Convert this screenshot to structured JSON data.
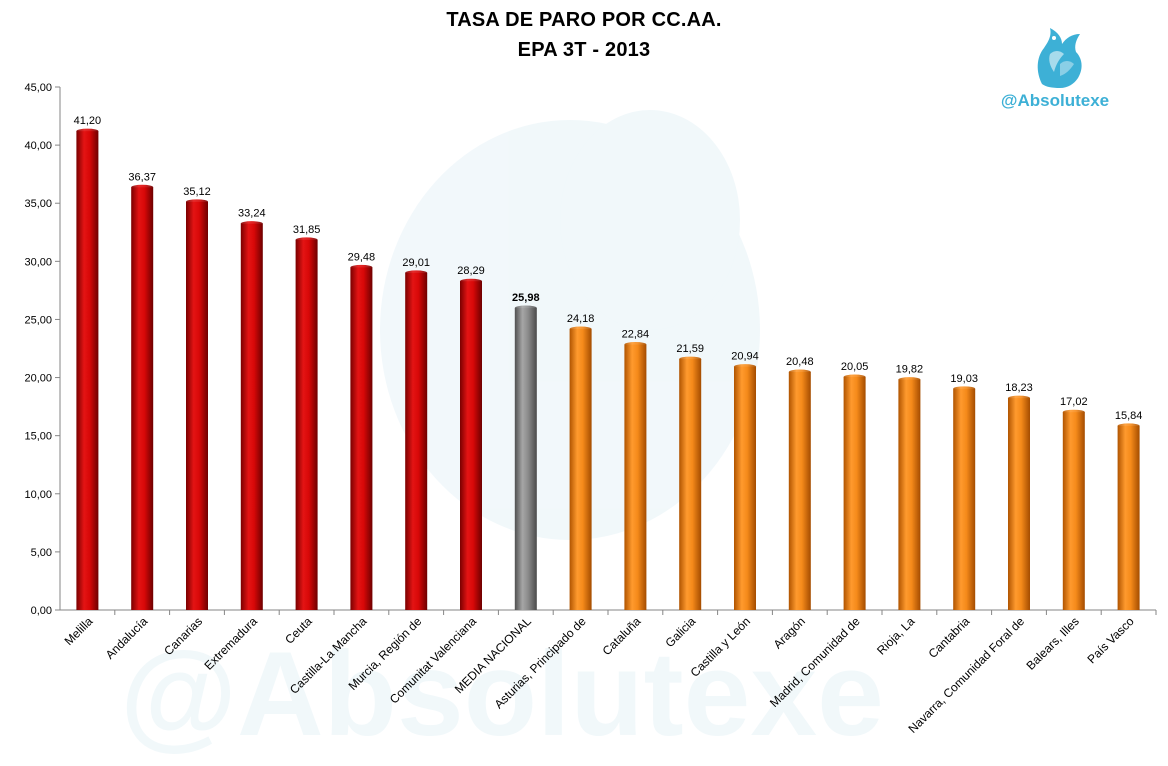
{
  "chart_data": {
    "type": "bar",
    "title": "TASA DE PARO POR CC.AA.",
    "subtitle": "EPA 3T - 2013",
    "xlabel": "",
    "ylabel": "",
    "ylim": [
      0,
      45
    ],
    "y_ticks": [
      "0,00",
      "5,00",
      "10,00",
      "15,00",
      "20,00",
      "25,00",
      "30,00",
      "35,00",
      "40,00",
      "45,00"
    ],
    "grid": false,
    "categories": [
      "Melilla",
      "Andalucía",
      "Canarias",
      "Extremadura",
      "Ceuta",
      "Castilla-La Mancha",
      "Murcia, Región de",
      "Comunitat Valenciana",
      "MEDIA NACIONAL",
      "Asturias, Principado de",
      "Cataluña",
      "Galicia",
      "Castilla y León",
      "Aragón",
      "Madrid, Comunidad de",
      "Rioja, La",
      "Cantabria",
      "Navarra, Comunidad Foral de",
      "Balears, Illes",
      "País Vasco"
    ],
    "values": [
      41.2,
      36.37,
      35.12,
      33.24,
      31.85,
      29.48,
      29.01,
      28.29,
      25.98,
      24.18,
      22.84,
      21.59,
      20.94,
      20.48,
      20.05,
      19.82,
      19.03,
      18.23,
      17.02,
      15.84
    ],
    "value_labels": [
      "41,20",
      "36,37",
      "35,12",
      "33,24",
      "31,85",
      "29,48",
      "29,01",
      "28,29",
      "25,98",
      "24,18",
      "22,84",
      "21,59",
      "20,94",
      "20,48",
      "20,05",
      "19,82",
      "19,03",
      "18,23",
      "17,02",
      "15,84"
    ],
    "highlight_index": 8,
    "colors": {
      "above_average": "#cc0000",
      "average": "#808080",
      "below_average": "#f07f10",
      "axis": "#868686"
    }
  },
  "branding": {
    "handle": "@Absolutexe",
    "logo_icon": "griffin-logo-icon",
    "brand_color": "#3db0d6",
    "watermark_text": "@Absolutexe"
  }
}
